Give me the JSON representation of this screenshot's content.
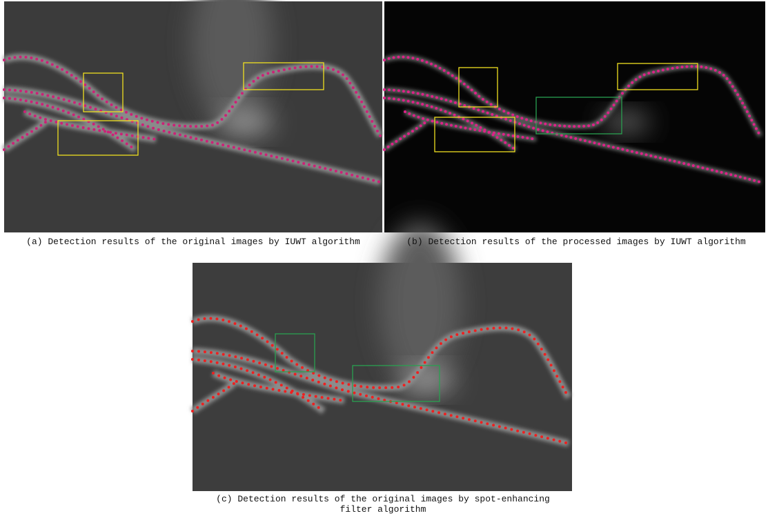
{
  "figure": {
    "captions": [
      "(a) Detection results of the original images by IUWT algorithm",
      "(b) Detection results of the processed images by IUWT algorithm",
      "(c) Detection results of the original images by spot-enhancing filter algorithm"
    ]
  }
}
